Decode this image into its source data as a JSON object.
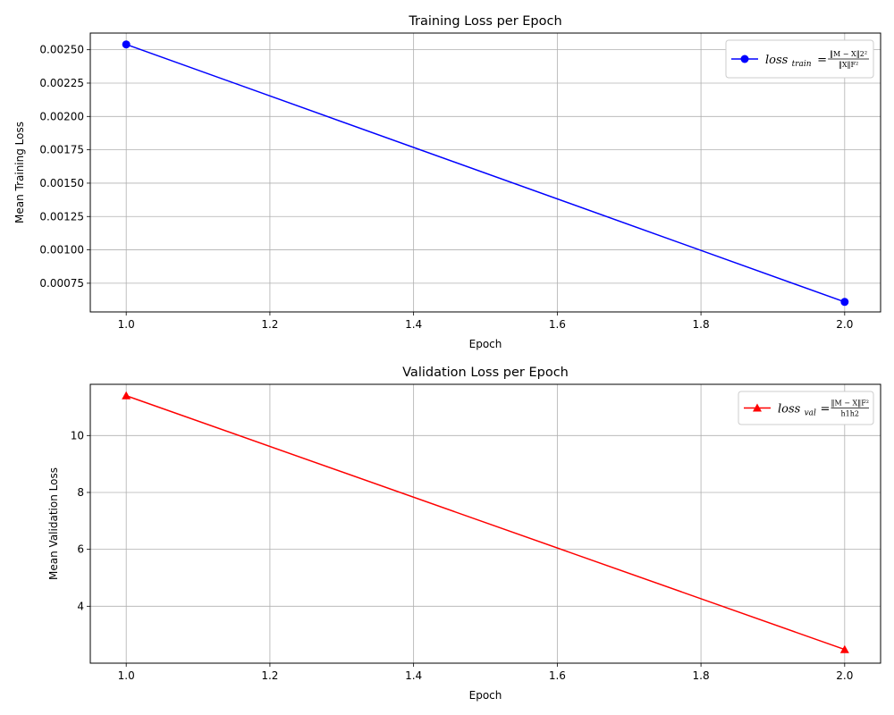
{
  "chart_data": [
    {
      "type": "line",
      "title": "Training Loss per Epoch",
      "xlabel": "Epoch",
      "ylabel": "Mean Training Loss",
      "xlim": [
        0.95,
        2.05
      ],
      "ylim": [
        0.000535,
        0.002625
      ],
      "xticks": [
        "1.0",
        "1.2",
        "1.4",
        "1.6",
        "1.8",
        "2.0"
      ],
      "yticks": [
        "0.00075",
        "0.00100",
        "0.00125",
        "0.00150",
        "0.00175",
        "0.00200",
        "0.00225",
        "0.00250"
      ],
      "grid": true,
      "legend": "top-right",
      "series": [
        {
          "name": "loss_train = ||M − X||2² / ||X||F²",
          "legend_main": "loss",
          "legend_sub": "train",
          "legend_num": "‖M − X‖2²",
          "legend_den": "‖X‖F²",
          "color": "#0000ff",
          "marker": "circle",
          "x": [
            1.0,
            2.0
          ],
          "y": [
            0.00254,
            0.00061
          ]
        }
      ]
    },
    {
      "type": "line",
      "title": "Validation Loss per Epoch",
      "xlabel": "Epoch",
      "ylabel": "Mean Validation Loss",
      "xlim": [
        0.95,
        2.05
      ],
      "ylim": [
        2.0,
        11.8
      ],
      "xticks": [
        "1.0",
        "1.2",
        "1.4",
        "1.6",
        "1.8",
        "2.0"
      ],
      "yticks": [
        "4",
        "6",
        "8",
        "10"
      ],
      "grid": true,
      "legend": "top-right",
      "series": [
        {
          "name": "loss_val = ||M − X||F² / h1h2",
          "legend_main": "loss",
          "legend_sub": "val",
          "legend_num": "‖M − X‖F²",
          "legend_den": "h1h2",
          "color": "#ff0000",
          "marker": "triangle",
          "x": [
            1.0,
            2.0
          ],
          "y": [
            11.4,
            2.48
          ]
        }
      ]
    }
  ]
}
